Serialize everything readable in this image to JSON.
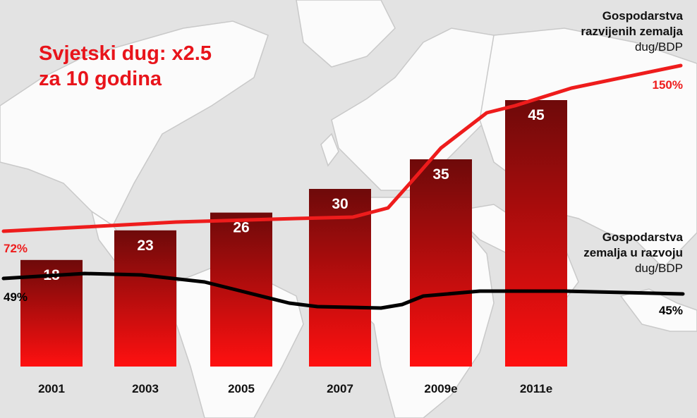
{
  "chart_data": {
    "type": "bar",
    "title_lines": [
      "Svjetski dug: x2.5",
      "za 10 godina"
    ],
    "categories": [
      "2001",
      "2003",
      "2005",
      "2007",
      "2009e",
      "2011e"
    ],
    "values": [
      18,
      23,
      26,
      30,
      35,
      45
    ],
    "ylim": [
      0,
      50
    ],
    "bar_color_top": "#6e0a0a",
    "bar_color_bottom": "#ff1010",
    "lines": [
      {
        "name_lines": [
          "Gospodarstva",
          "razvijenih zemalja",
          "dug/BDP"
        ],
        "color": "#ee1c1c",
        "start_label": "72%",
        "end_label": "150%",
        "start_value": 72,
        "end_value": 150
      },
      {
        "name_lines": [
          "Gospodarstva",
          "zemalja u razvoju",
          "dug/BDP"
        ],
        "color": "#000000",
        "start_label": "49%",
        "end_label": "45%",
        "start_value": 49,
        "end_value": 45
      }
    ]
  }
}
